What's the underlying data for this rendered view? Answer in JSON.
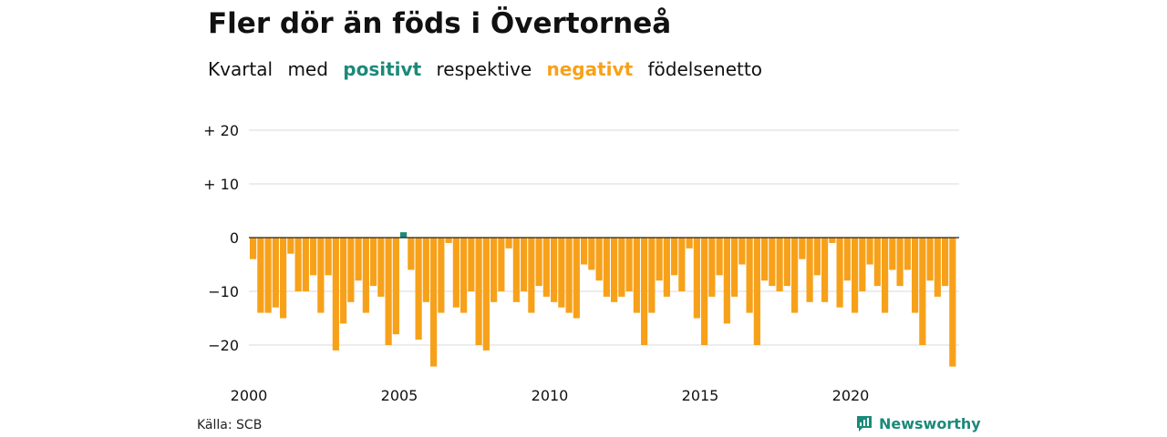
{
  "title": "Fler dör än föds i Övertorneå",
  "subtitle": {
    "w1": "Kvartal",
    "w2": "med",
    "positive": "positivt",
    "w3": "respektive",
    "negative": "negativt",
    "w4": "födelsenetto"
  },
  "source": "Källa: SCB",
  "brand": "Newsworthy",
  "colors": {
    "positive": "#1b8a7a",
    "negative": "#f7a11a",
    "grid": "#d9d9d9",
    "zero_line": "#222222"
  },
  "chart_data": {
    "type": "bar",
    "ylim": [
      -25,
      22
    ],
    "yticks": [
      {
        "value": 20,
        "label": "+ 20"
      },
      {
        "value": 10,
        "label": "+ 10"
      },
      {
        "value": 0,
        "label": "0"
      },
      {
        "value": -10,
        "label": "−10"
      },
      {
        "value": -20,
        "label": "−20"
      }
    ],
    "xticks": [
      {
        "value": 2000,
        "label": "2000"
      },
      {
        "value": 2005,
        "label": "2005"
      },
      {
        "value": 2010,
        "label": "2010"
      },
      {
        "value": 2015,
        "label": "2015"
      },
      {
        "value": 2020,
        "label": "2020"
      }
    ],
    "start_year": 2000,
    "values": [
      -4,
      -14,
      -14,
      -13,
      -15,
      -3,
      -10,
      -10,
      -7,
      -14,
      -7,
      -21,
      -16,
      -12,
      -8,
      -14,
      -9,
      -11,
      -20,
      -18,
      1,
      -6,
      -19,
      -12,
      -24,
      -14,
      -1,
      -13,
      -14,
      -10,
      -20,
      -21,
      -12,
      -10,
      -2,
      -12,
      -10,
      -14,
      -9,
      -11,
      -12,
      -13,
      -14,
      -15,
      -5,
      -6,
      -8,
      -11,
      -12,
      -11,
      -10,
      -14,
      -20,
      -14,
      -8,
      -11,
      -7,
      -10,
      -2,
      -15,
      -20,
      -11,
      -7,
      -16,
      -11,
      -5,
      -14,
      -20,
      -8,
      -9,
      -10,
      -9,
      -14,
      -4,
      -12,
      -7,
      -12,
      -1,
      -13,
      -8,
      -14,
      -10,
      -5,
      -9,
      -14,
      -6,
      -9,
      -6,
      -14,
      -20,
      -8,
      -11,
      -9,
      -24
    ]
  }
}
